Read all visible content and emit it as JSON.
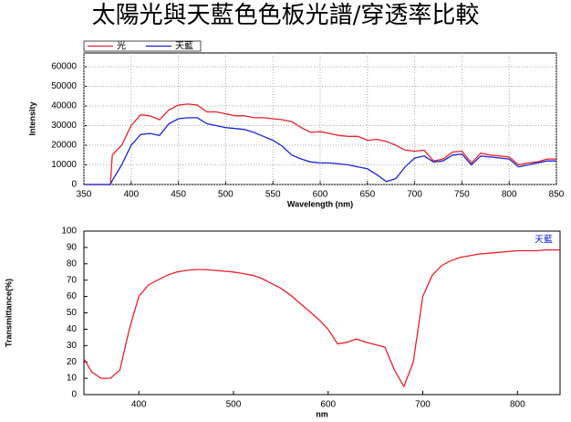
{
  "title": "太陽光與天藍色色板光譜/穿透率比較",
  "chart_data": [
    {
      "type": "line",
      "xlabel": "Wavelength (nm)",
      "ylabel": "Intensity",
      "x": [
        350,
        370,
        378,
        380,
        390,
        400,
        410,
        420,
        430,
        440,
        450,
        460,
        470,
        480,
        490,
        500,
        510,
        520,
        530,
        540,
        550,
        560,
        570,
        580,
        590,
        600,
        610,
        620,
        630,
        640,
        650,
        660,
        670,
        680,
        690,
        700,
        710,
        720,
        730,
        740,
        750,
        760,
        770,
        780,
        790,
        800,
        810,
        820,
        830,
        840,
        850
      ],
      "series": [
        {
          "name": "光",
          "color": "#e8202a",
          "values": [
            0,
            0,
            0,
            15000,
            20000,
            30000,
            35500,
            35000,
            33000,
            38000,
            40500,
            41000,
            40500,
            37000,
            37000,
            36000,
            35000,
            35000,
            34000,
            34000,
            33500,
            33000,
            32000,
            29000,
            26500,
            27000,
            26000,
            25000,
            24500,
            24500,
            22500,
            23000,
            22000,
            20000,
            17500,
            17000,
            17500,
            12000,
            13000,
            16500,
            17000,
            11000,
            16000,
            15000,
            14500,
            14000,
            10000,
            11000,
            11500,
            13000,
            13000
          ]
        },
        {
          "name": "天藍",
          "color": "#1a22d8",
          "values": [
            0,
            0,
            0,
            2000,
            10000,
            20000,
            25500,
            26000,
            25000,
            31000,
            33500,
            34000,
            34000,
            31000,
            30000,
            29000,
            28500,
            28000,
            26500,
            24500,
            22500,
            19500,
            15000,
            13000,
            11500,
            11000,
            11000,
            10500,
            10000,
            9000,
            8000,
            5000,
            1500,
            3000,
            9000,
            13500,
            14500,
            11500,
            12000,
            15000,
            15500,
            10000,
            14500,
            14000,
            13500,
            13000,
            9000,
            10000,
            11000,
            12000,
            12000
          ]
        }
      ],
      "xlim": [
        350,
        850
      ],
      "xticks": [
        350,
        400,
        450,
        500,
        550,
        600,
        650,
        700,
        750,
        800,
        850
      ],
      "ylim": [
        0,
        67000
      ],
      "yticks": [
        0,
        10000,
        20000,
        30000,
        40000,
        50000,
        60000
      ],
      "grid": true,
      "legend": "top-left"
    },
    {
      "type": "line",
      "xlabel": "nm",
      "ylabel": "Transmittance(%)",
      "x": [
        342,
        350,
        360,
        370,
        380,
        390,
        400,
        410,
        420,
        430,
        440,
        450,
        460,
        470,
        480,
        490,
        500,
        510,
        520,
        530,
        540,
        550,
        560,
        570,
        580,
        590,
        600,
        610,
        620,
        630,
        640,
        650,
        660,
        670,
        680,
        690,
        700,
        710,
        720,
        730,
        740,
        750,
        760,
        770,
        780,
        790,
        800,
        810,
        820,
        830,
        845
      ],
      "series": [
        {
          "name": "天藍",
          "color": "#e8202a",
          "values": [
            22,
            14,
            10,
            10,
            15,
            40,
            60,
            67,
            70,
            73,
            75,
            76,
            76.5,
            76.5,
            76,
            75.5,
            75,
            74,
            73,
            71,
            68,
            65,
            61,
            56,
            51,
            46,
            40,
            31,
            32,
            34,
            32,
            30.5,
            29,
            15,
            5,
            20,
            60,
            73,
            79,
            82,
            84,
            85,
            86,
            86.5,
            87,
            87.5,
            88,
            88,
            88,
            88.5,
            88.5
          ]
        }
      ],
      "xlim": [
        342,
        845
      ],
      "xticks": [
        400,
        500,
        600,
        700,
        800
      ],
      "ylim": [
        0,
        100
      ],
      "yticks": [
        0,
        10,
        20,
        30,
        40,
        50,
        60,
        70,
        80,
        90,
        100
      ],
      "grid": false,
      "legend": "top-right",
      "legend_color": "#1a22d8"
    }
  ]
}
